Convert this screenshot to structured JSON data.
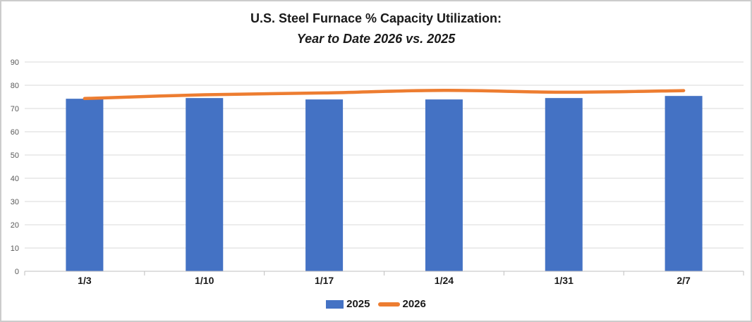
{
  "window": {
    "background_color": "#ffffff",
    "border_color": "#cccccc"
  },
  "chart_data": {
    "type": "bar+line",
    "title": "U.S. Steel Furnace % Capacity Utilization:",
    "subtitle": "Year to Date 2026 vs. 2025",
    "categories": [
      "1/3",
      "1/10",
      "1/17",
      "1/24",
      "1/31",
      "2/7"
    ],
    "series": [
      {
        "name": "2025",
        "type": "bar",
        "color": "#4472C4",
        "values": [
          74.2,
          74.5,
          73.9,
          73.9,
          74.5,
          75.4
        ]
      },
      {
        "name": "2026",
        "type": "line",
        "color": "#ED7D31",
        "values": [
          74.3,
          75.9,
          76.7,
          77.8,
          77.0,
          77.7
        ]
      }
    ],
    "ylim": [
      0,
      90
    ],
    "ytick_step": 10,
    "yticks": [
      0,
      10,
      20,
      30,
      40,
      50,
      60,
      70,
      80,
      90
    ],
    "grid": true,
    "gridline_color": "#d9d9d9",
    "axis_line_color": "#bfbfbf",
    "ytick_label_color": "#595959",
    "xtick_label_color": "#1a1a1a",
    "legend_position": "bottom"
  }
}
